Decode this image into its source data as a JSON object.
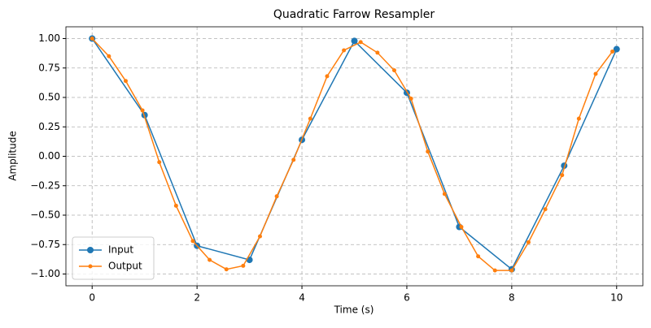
{
  "chart_data": {
    "type": "line",
    "title": "Quadratic Farrow Resampler",
    "x_label": "Time (s)",
    "y_label": "Amplitude",
    "series": [
      {
        "name": "Input",
        "color": "#1f77b4",
        "marker_size": 4,
        "x": [
          0,
          1,
          2,
          3,
          4,
          5,
          6,
          7,
          8,
          9,
          10
        ],
        "values": [
          1.0,
          0.35,
          -0.76,
          -0.88,
          0.14,
          0.98,
          0.54,
          -0.6,
          -0.96,
          -0.08,
          0.91
        ]
      },
      {
        "name": "Output",
        "color": "#ff7f0e",
        "marker_size": 2.5,
        "x": [
          0,
          0.32,
          0.64,
          0.96,
          1.28,
          1.6,
          1.92,
          2.24,
          2.56,
          2.88,
          3.2,
          3.52,
          3.84,
          4.16,
          4.48,
          4.8,
          5.12,
          5.44,
          5.76,
          6.08,
          6.4,
          6.72,
          7.04,
          7.36,
          7.68,
          8.0,
          8.32,
          8.64,
          8.96,
          9.28,
          9.6,
          9.92
        ],
        "values": [
          1.0,
          0.85,
          0.64,
          0.39,
          -0.05,
          -0.42,
          -0.72,
          -0.88,
          -0.96,
          -0.93,
          -0.68,
          -0.34,
          -0.03,
          0.32,
          0.68,
          0.9,
          0.97,
          0.88,
          0.73,
          0.49,
          0.04,
          -0.32,
          -0.6,
          -0.85,
          -0.97,
          -0.97,
          -0.73,
          -0.45,
          -0.16,
          0.32,
          0.7,
          0.89
        ]
      }
    ],
    "xlim": [
      -0.5,
      10.5
    ],
    "ylim": [
      -1.1,
      1.1
    ],
    "xticks": [
      0,
      2,
      4,
      6,
      8,
      10
    ],
    "yticks": [
      {
        "value": -1,
        "label": "−1.00"
      },
      {
        "value": -0.75,
        "label": "−0.75"
      },
      {
        "value": -0.5,
        "label": "−0.50"
      },
      {
        "value": -0.25,
        "label": "−0.25"
      },
      {
        "value": 0,
        "label": "0.00"
      },
      {
        "value": 0.25,
        "label": "0.25"
      },
      {
        "value": 0.5,
        "label": "0.50"
      },
      {
        "value": 0.75,
        "label": "0.75"
      },
      {
        "value": 1,
        "label": "1.00"
      }
    ],
    "grid": true,
    "legend": "lower left"
  }
}
